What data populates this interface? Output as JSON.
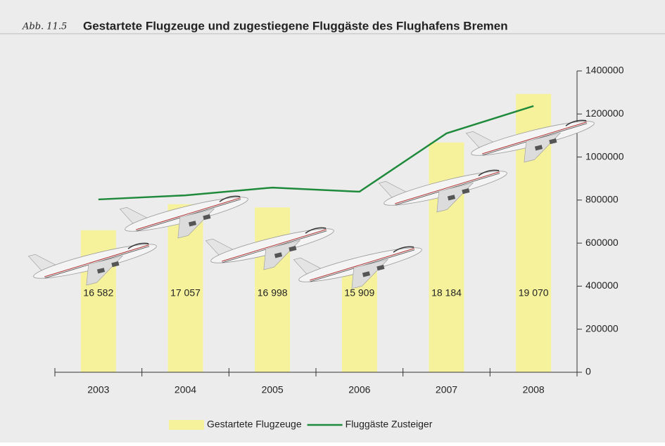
{
  "chart_data": {
    "type": "bar",
    "annotation": "Abb. 11.5",
    "title": "Gestartete Flugzeuge und zugestiegene Fluggäste des Flughafens Bremen",
    "categories": [
      "2003",
      "2004",
      "2005",
      "2006",
      "2007",
      "2008"
    ],
    "series": [
      {
        "name": "Gestartete Flugzeuge",
        "type": "bar",
        "color": "#f6f29c",
        "axis": "y2",
        "values": [
          16582,
          17057,
          16998,
          15909,
          18184,
          19070
        ],
        "value_labels": [
          "16 582",
          "17 057",
          "16 998",
          "15 909",
          "18 184",
          "19 070"
        ]
      },
      {
        "name": "Fluggäste Zusteiger",
        "type": "line",
        "color": "#1f8a3c",
        "values": [
          803000,
          822000,
          858000,
          839000,
          1110000,
          1237000
        ]
      }
    ],
    "ylim": [
      0,
      1400000
    ],
    "yticks": [
      0,
      200000,
      400000,
      600000,
      800000,
      1000000,
      1200000,
      1400000
    ],
    "y2lim": [
      13990,
      19490
    ]
  }
}
